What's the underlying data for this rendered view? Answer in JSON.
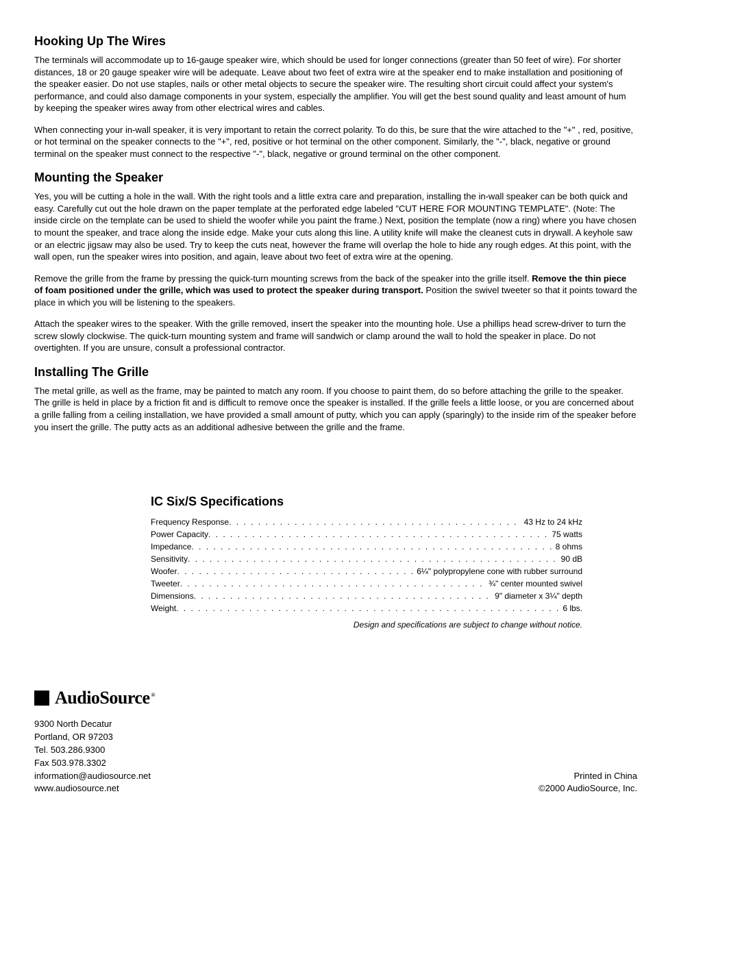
{
  "sections": {
    "wires": {
      "heading": "Hooking Up The Wires",
      "p1": "The terminals will accommodate up to 16-gauge speaker wire, which should be used for longer connections (greater than 50 feet of wire). For shorter distances, 18 or 20 gauge speaker wire will be adequate. Leave about two feet of extra wire at the speaker end to make installation and positioning of the speaker easier. Do not use staples, nails or other metal objects to secure the speaker wire. The resulting short circuit could affect your system's performance, and could also damage components in your system, especially the amplifier. You will get the best sound quality and least amount of hum by keeping the speaker wires away from other electrical wires and cables.",
      "p2": "When connecting your in-wall speaker, it is very important to retain the correct polarity. To do this, be sure that the wire attached to the \"+\" , red, positive, or hot terminal on the speaker connects to the \"+\", red, positive or hot terminal on the other component. Similarly, the \"-\", black, negative or ground terminal on the speaker must connect to the respective \"-\", black, negative or ground terminal on the other component."
    },
    "mounting": {
      "heading": "Mounting the Speaker",
      "p1": "Yes, you will be cutting a hole in the wall. With the right tools and a little extra care and preparation, installing the in-wall speaker can be both quick and easy. Carefully cut out the hole drawn on the paper template at the perforated edge labeled \"CUT HERE FOR MOUNTING TEMPLATE\". (Note: The inside circle on the template can be used to shield the woofer while you paint the frame.) Next, position the template (now a ring) where you have chosen to mount the speaker, and trace along the inside edge. Make your cuts along this line. A utility knife will make the cleanest cuts in drywall. A keyhole saw or an electric jigsaw may also be used. Try to keep the cuts neat, however the frame will overlap the hole to hide any rough edges. At this point, with the wall open, run the speaker wires into position, and again, leave about two feet of extra wire at the opening.",
      "p2_pre": "Remove the grille from the frame by pressing the quick-turn mounting screws from the back of the speaker into the grille itself. ",
      "p2_bold": "Remove the thin piece of foam positioned under the grille, which was used to protect the speaker during transport.",
      "p2_post": " Position the swivel tweeter so that it points toward the place in which you will be listening to the speakers.",
      "p3": "Attach the speaker wires to the speaker. With the grille removed, insert the speaker into the mounting hole. Use a phillips head screw-driver to turn the screw slowly clockwise. The quick-turn mounting system and frame will sandwich or clamp around the wall to hold the speaker in place. Do not overtighten. If you are unsure, consult a professional contractor."
    },
    "grille": {
      "heading": "Installing The Grille",
      "p1": "The metal grille, as well as the frame, may be painted to match any room. If you choose to paint them, do so before attaching the grille to the speaker. The grille is held in place by a friction fit and is difficult to remove once the speaker is installed. If the grille feels a little loose, or you are concerned about a grille falling from a ceiling installation, we have provided a small amount of putty, which you can apply (sparingly) to the inside rim of the speaker before you insert the grille. The putty acts as an additional adhesive between the grille and the frame."
    }
  },
  "specs": {
    "heading": "IC Six/S Specifications",
    "rows": [
      {
        "label": "Frequency Response",
        "value": "43 Hz to 24 kHz"
      },
      {
        "label": "Power Capacity",
        "value": "75 watts"
      },
      {
        "label": "Impedance",
        "value": "8 ohms"
      },
      {
        "label": "Sensitivity",
        "value": "90 dB"
      },
      {
        "label": "Woofer",
        "value": "6¼\" polypropylene cone with rubber surround"
      },
      {
        "label": "Tweeter",
        "value": "¾\" center mounted swivel"
      },
      {
        "label": "Dimensions",
        "value": "9\" diameter x 3¼\" depth"
      },
      {
        "label": "Weight",
        "value": "6 lbs."
      }
    ],
    "note": "Design and specifications are subject to change without notice."
  },
  "footer": {
    "logo_text": "AudioSource",
    "contact": {
      "l1": "9300 North Decatur",
      "l2": "Portland, OR 97203",
      "l3": "Tel. 503.286.9300",
      "l4": "Fax 503.978.3302",
      "l5": "information@audiosource.net",
      "l6": "www.audiosource.net"
    },
    "right": {
      "l1": "Printed in China",
      "l2": "©2000 AudioSource, Inc."
    }
  }
}
